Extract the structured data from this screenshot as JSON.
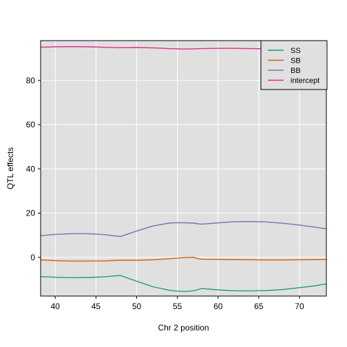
{
  "chart_data": {
    "type": "line",
    "title": "",
    "xlabel": "Chr 2 position",
    "ylabel": "QTL effects",
    "xlim": [
      38.2,
      73.3
    ],
    "ylim": [
      -17.5,
      98.0
    ],
    "xticks": [
      40,
      45,
      50,
      55,
      60,
      65,
      70
    ],
    "yticks": [
      0,
      20,
      40,
      60,
      80
    ],
    "grid": true,
    "legend": {
      "position": "top-right"
    },
    "series": [
      {
        "name": "SS",
        "color": "#1b9e77",
        "x": [
          38.2,
          40,
          42,
          44,
          46,
          48,
          50,
          52,
          54,
          55,
          56,
          57,
          57.5,
          58,
          60,
          62,
          64,
          66,
          68,
          70,
          72,
          73.3
        ],
        "y": [
          -8.7,
          -9.0,
          -9.2,
          -9.1,
          -8.8,
          -8.2,
          -10.8,
          -13.3,
          -14.9,
          -15.3,
          -15.4,
          -15.1,
          -14.6,
          -14.1,
          -14.7,
          -15.1,
          -15.2,
          -15.0,
          -14.5,
          -13.7,
          -12.8,
          -12.0
        ]
      },
      {
        "name": "SB",
        "color": "#d95f02",
        "x": [
          38.2,
          40,
          42,
          44,
          46,
          48,
          50,
          52,
          54,
          56,
          57,
          57.5,
          58,
          60,
          62,
          64,
          66,
          68,
          70,
          72,
          73.3
        ],
        "y": [
          -1.2,
          -1.5,
          -1.7,
          -1.7,
          -1.6,
          -1.3,
          -1.3,
          -1.1,
          -0.6,
          -0.1,
          0.0,
          -0.5,
          -0.8,
          -0.9,
          -1.0,
          -1.1,
          -1.2,
          -1.2,
          -1.1,
          -1.0,
          -0.9
        ]
      },
      {
        "name": "BB",
        "color": "#7570b3",
        "x": [
          38.2,
          40,
          42,
          44,
          46,
          48,
          50,
          52,
          54,
          55,
          56,
          57,
          57.5,
          58,
          60,
          62,
          64,
          66,
          68,
          70,
          72,
          73.3
        ],
        "y": [
          9.8,
          10.4,
          10.7,
          10.7,
          10.3,
          9.4,
          11.9,
          14.2,
          15.5,
          15.7,
          15.6,
          15.5,
          15.2,
          15.0,
          15.6,
          16.1,
          16.2,
          16.0,
          15.4,
          14.6,
          13.6,
          12.9
        ]
      },
      {
        "name": "intercept",
        "color": "#e7298a",
        "x": [
          38.2,
          40,
          42,
          44,
          46,
          48,
          50,
          52,
          54,
          56,
          57,
          58,
          60,
          62,
          64,
          66,
          68,
          70,
          72,
          73.3
        ],
        "y": [
          95.0,
          95.2,
          95.3,
          95.2,
          95.0,
          94.8,
          94.9,
          94.7,
          94.4,
          94.2,
          94.3,
          94.4,
          94.5,
          94.5,
          94.4,
          94.3,
          94.3,
          94.2,
          94.1,
          94.1
        ]
      }
    ]
  }
}
